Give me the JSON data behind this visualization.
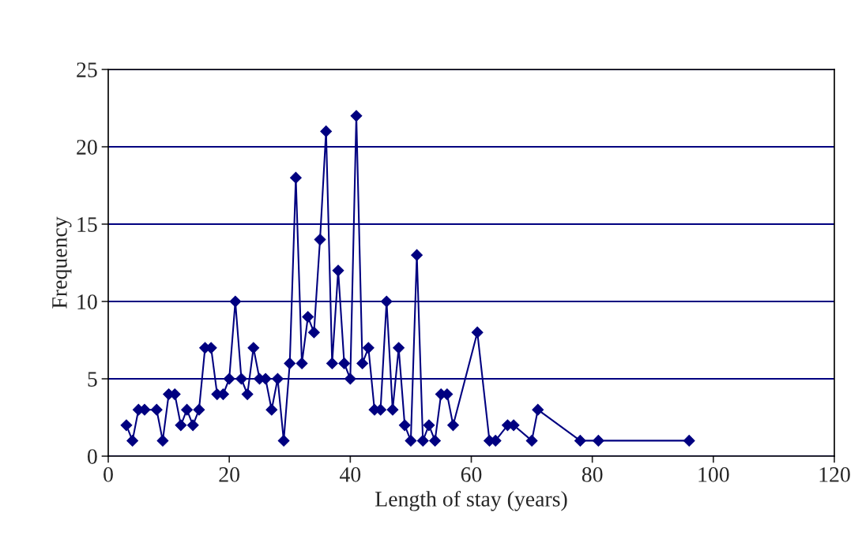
{
  "chart_data": {
    "type": "line",
    "xlabel": "Length of stay (years)",
    "ylabel": "Frequency",
    "x": [
      3,
      4,
      5,
      6,
      8,
      9,
      10,
      11,
      12,
      13,
      14,
      15,
      16,
      17,
      18,
      19,
      20,
      21,
      22,
      23,
      24,
      25,
      26,
      27,
      28,
      29,
      30,
      31,
      32,
      33,
      34,
      35,
      36,
      37,
      38,
      39,
      40,
      41,
      42,
      43,
      44,
      45,
      46,
      47,
      48,
      49,
      50,
      51,
      52,
      53,
      54,
      55,
      56,
      57,
      61,
      63,
      64,
      66,
      67,
      70,
      71,
      78,
      81,
      96
    ],
    "series": [
      {
        "color": "#000080",
        "values": [
          2,
          1,
          3,
          3,
          3,
          1,
          4,
          4,
          2,
          3,
          2,
          3,
          7,
          7,
          4,
          4,
          5,
          10,
          5,
          4,
          7,
          5,
          5,
          3,
          5,
          1,
          6,
          18,
          6,
          9,
          8,
          14,
          21,
          6,
          12,
          6,
          5,
          22,
          6,
          7,
          3,
          3,
          10,
          3,
          7,
          2,
          1,
          13,
          1,
          2,
          1,
          4,
          4,
          2,
          8,
          1,
          1,
          2,
          2,
          1,
          3,
          1,
          1,
          1
        ]
      }
    ],
    "xlim": [
      0,
      120
    ],
    "xticks": [
      0,
      20,
      40,
      60,
      80,
      100,
      120
    ],
    "ylim": [
      0,
      25
    ],
    "yticks": [
      0,
      5,
      10,
      15,
      20,
      25
    ],
    "grid": "y",
    "marker": "diamond",
    "line_style": "solid"
  }
}
